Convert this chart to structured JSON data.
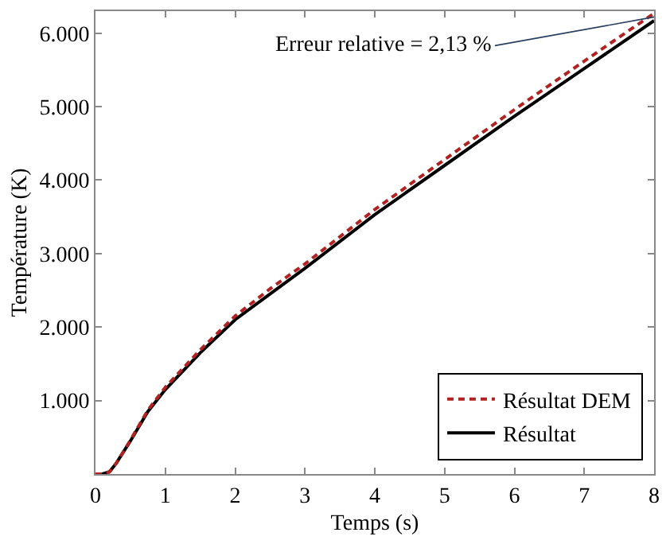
{
  "chart_data": {
    "type": "line",
    "xlabel": "Temps (s)",
    "ylabel": "Température (K)",
    "x": [
      0,
      0.1,
      0.2,
      0.3,
      0.5,
      0.75,
      1,
      1.5,
      2,
      2.5,
      3,
      4,
      5,
      6,
      7,
      8
    ],
    "series": [
      {
        "name": "Résultat DEM",
        "color": "#b22222",
        "line_style": "dashed",
        "values": [
          0,
          0,
          30,
          150,
          460,
          870,
          1180,
          1690,
          2150,
          2520,
          2860,
          3600,
          4280,
          4960,
          5620,
          6270
        ]
      },
      {
        "name": "Résultat",
        "color": "#000000",
        "line_style": "solid",
        "values": [
          0,
          0,
          30,
          150,
          450,
          850,
          1150,
          1650,
          2100,
          2450,
          2800,
          3530,
          4200,
          4870,
          5520,
          6170
        ]
      }
    ],
    "xlim": [
      0,
      8
    ],
    "xticks": [
      0,
      1,
      2,
      3,
      4,
      5,
      6,
      7,
      8
    ],
    "ylim": [
      0,
      6300
    ],
    "yticks": [
      {
        "value": 1000,
        "label": "1.000"
      },
      {
        "value": 2000,
        "label": "2.000"
      },
      {
        "value": 3000,
        "label": "3.000"
      },
      {
        "value": 4000,
        "label": "4.000"
      },
      {
        "value": 5000,
        "label": "5.000"
      },
      {
        "value": 6000,
        "label": "6.000"
      }
    ],
    "annotations": [
      {
        "text": "Erreur relative = 2,13 %",
        "x": 8,
        "y": 6220
      }
    ],
    "legend": "bottom right",
    "grid": false,
    "marker": "none"
  }
}
